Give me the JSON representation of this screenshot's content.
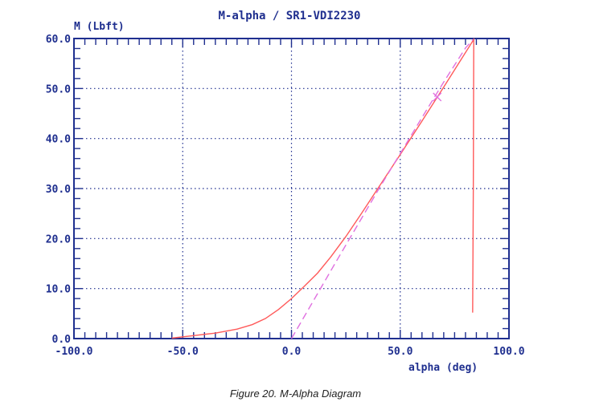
{
  "chart_data": {
    "type": "line",
    "title": "M-alpha / SR1-VDI2230",
    "xlabel": "alpha (deg)",
    "ylabel": "M (Lbft)",
    "xlim": [
      -100,
      100
    ],
    "ylim": [
      0,
      60
    ],
    "x_ticks": [
      -100,
      -50,
      0,
      50,
      100
    ],
    "x_tick_labels": [
      "-100.0",
      "-50.0",
      "0.0",
      "50.0",
      "100.0"
    ],
    "y_ticks": [
      0,
      10,
      20,
      30,
      40,
      50,
      60
    ],
    "y_tick_labels": [
      "0.0",
      "10.0",
      "20.0",
      "30.0",
      "40.0",
      "50.0",
      "60.0"
    ],
    "grid": true,
    "series": [
      {
        "style": "solid",
        "color": "#ff5a5a",
        "x": [
          -55,
          -45,
          -35,
          -25,
          -18,
          -12,
          -6,
          0,
          6,
          12,
          18,
          25,
          32,
          40,
          50,
          60,
          70,
          80,
          83.5,
          83.8,
          83.6,
          83.3
        ],
        "y": [
          0.1,
          0.6,
          1.1,
          1.9,
          2.8,
          4.0,
          5.8,
          8.0,
          10.5,
          13.1,
          16.3,
          20.4,
          24.9,
          30.2,
          36.8,
          43.5,
          50.3,
          57.2,
          59.6,
          59.8,
          30,
          5.2
        ]
      },
      {
        "style": "dashed",
        "color": "#e070e0",
        "x": [
          0,
          10,
          20,
          30,
          40,
          50,
          60,
          70,
          80,
          83.5
        ],
        "y": [
          0,
          7.5,
          15.0,
          22.4,
          29.8,
          37.0,
          44.2,
          51.3,
          58.1,
          59.8
        ]
      }
    ],
    "marker": {
      "x": 67,
      "y": 48.3,
      "symbol": "x",
      "color": "#e070e0"
    }
  },
  "colors": {
    "axis": "#1f2f8f",
    "grid": "#1f2f8f",
    "solid_series": "#ff5a5a",
    "dashed_series": "#e070e0"
  },
  "caption": "Figure 20. M-Alpha Diagram"
}
